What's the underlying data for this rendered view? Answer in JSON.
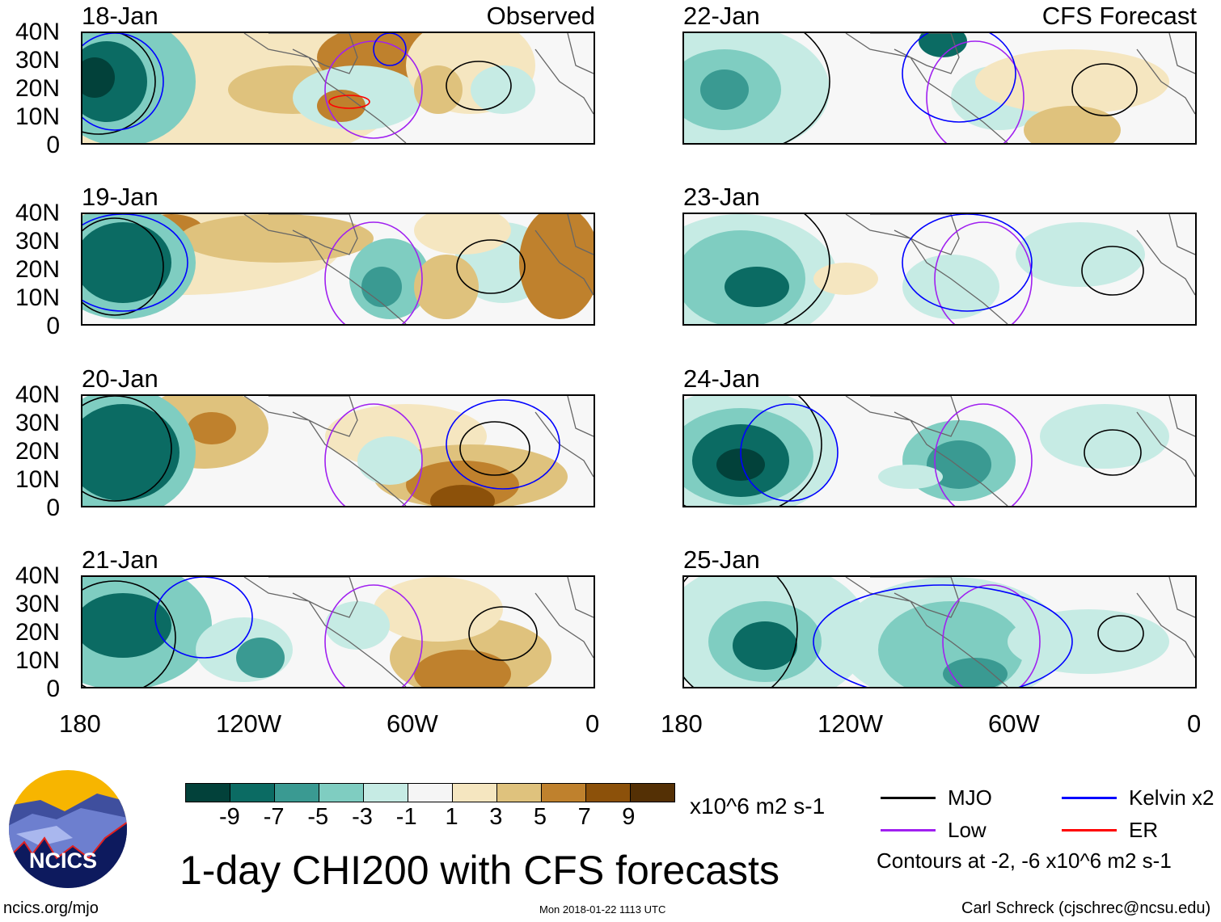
{
  "panels": [
    {
      "date": "18-Jan",
      "tag": "Observed"
    },
    {
      "date": "22-Jan",
      "tag": "CFS Forecast"
    },
    {
      "date": "19-Jan"
    },
    {
      "date": "23-Jan"
    },
    {
      "date": "20-Jan"
    },
    {
      "date": "24-Jan"
    },
    {
      "date": "21-Jan"
    },
    {
      "date": "25-Jan"
    }
  ],
  "chart_data": {
    "type": "heatmap",
    "title": "1-day CHI200 with CFS forecasts",
    "lat_ticks": [
      "40N",
      "30N",
      "20N",
      "10N",
      "0"
    ],
    "lon_ticks": [
      "180",
      "120W",
      "60W",
      "0"
    ],
    "colorbar": {
      "labels": [
        "-9",
        "-7",
        "-5",
        "-3",
        "-1",
        "1",
        "3",
        "5",
        "7",
        "9"
      ],
      "colors": [
        "#02413a",
        "#0b6b63",
        "#3a9a92",
        "#7fcdc1",
        "#c6ebe4",
        "#f5f5f5",
        "#f5e6c0",
        "#dfc27d",
        "#bf812d",
        "#8c510a",
        "#543005"
      ],
      "units": "x10^6 m2 s-1"
    },
    "legend": [
      {
        "name": "MJO",
        "color": "#000000"
      },
      {
        "name": "Kelvin x2",
        "color": "#0000ff"
      },
      {
        "name": "Low",
        "color": "#a020f0"
      },
      {
        "name": "ER",
        "color": "#ff0000"
      }
    ],
    "contour_note": "Contours at -2, -6 x10^6 m2 s-1"
  },
  "footer": {
    "left": "ncics.org/mjo",
    "center": "Mon 2018-01-22 1113 UTC",
    "right": "Carl Schreck (cjschrec@ncsu.edu)"
  },
  "logo": {
    "text": "NCICS"
  }
}
